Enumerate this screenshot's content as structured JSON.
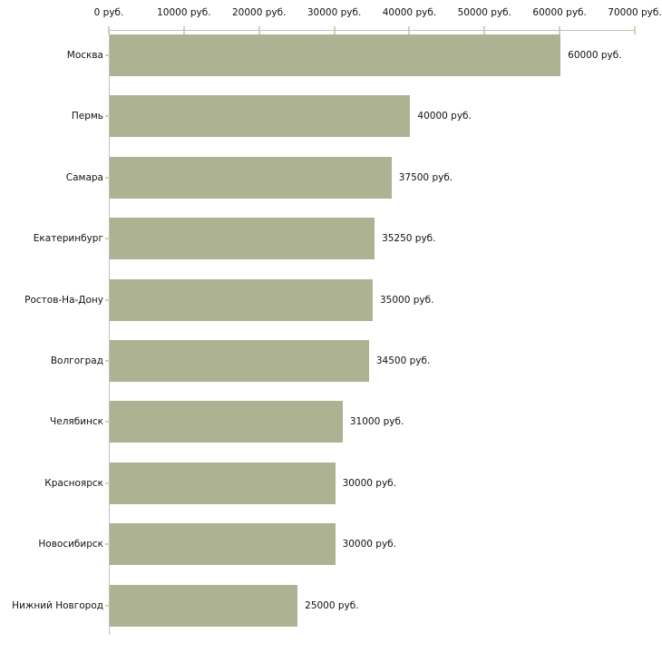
{
  "chart_data": {
    "type": "bar",
    "orientation": "horizontal",
    "title": "",
    "xlabel": "",
    "ylabel": "",
    "categories": [
      "Москва",
      "Пермь",
      "Самара",
      "Екатеринбург",
      "Ростов-На-Дону",
      "Волгоград",
      "Челябинск",
      "Красноярск",
      "Новосибирск",
      "Нижний Новгород"
    ],
    "values": [
      60000,
      40000,
      37500,
      35250,
      35000,
      34500,
      31000,
      30000,
      30000,
      25000
    ],
    "value_labels": [
      "60000 руб.",
      "40000 руб.",
      "37500 руб.",
      "35250 руб.",
      "35000 руб.",
      "34500 руб.",
      "31000 руб.",
      "30000 руб.",
      "30000 руб.",
      "25000 руб."
    ],
    "x_axis": {
      "min": 0,
      "max": 70000,
      "tick_step": 10000,
      "tick_labels": [
        "0 руб.",
        "10000 руб.",
        "20000 руб.",
        "30000 руб.",
        "40000 руб.",
        "50000 руб.",
        "60000 руб.",
        "70000 руб."
      ],
      "position": "top"
    },
    "grid": false,
    "legend": false,
    "colors": {
      "bar": "#adb293",
      "axis": "#bfbfbf",
      "tick": "#d3d5a9",
      "text": "#111111",
      "background": "#ffffff"
    }
  }
}
